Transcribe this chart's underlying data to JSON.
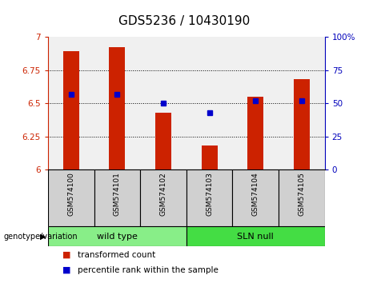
{
  "title": "GDS5236 / 10430190",
  "samples": [
    "GSM574100",
    "GSM574101",
    "GSM574102",
    "GSM574103",
    "GSM574104",
    "GSM574105"
  ],
  "transformed_count": [
    6.89,
    6.92,
    6.43,
    6.18,
    6.55,
    6.68
  ],
  "percentile_rank": [
    57,
    57,
    50,
    43,
    52,
    52
  ],
  "ylim_left": [
    6.0,
    7.0
  ],
  "yticks_left": [
    6.0,
    6.25,
    6.5,
    6.75,
    7.0
  ],
  "ytick_labels_left": [
    "6",
    "6.25",
    "6.5",
    "6.75",
    "7"
  ],
  "ylim_right": [
    0,
    100
  ],
  "yticks_right": [
    0,
    25,
    50,
    75,
    100
  ],
  "ytick_labels_right": [
    "0",
    "25",
    "50",
    "75",
    "100%"
  ],
  "bar_color": "#cc2200",
  "dot_color": "#0000cc",
  "groups": [
    {
      "label": "wild type",
      "indices": [
        0,
        1,
        2
      ],
      "color": "#88ee88"
    },
    {
      "label": "SLN null",
      "indices": [
        3,
        4,
        5
      ],
      "color": "#44dd44"
    }
  ],
  "group_row_label": "genotype/variation",
  "legend_items": [
    {
      "color": "#cc2200",
      "label": "transformed count"
    },
    {
      "color": "#0000cc",
      "label": "percentile rank within the sample"
    }
  ],
  "bar_width": 0.35,
  "axis_bg": "#f0f0f0",
  "sample_bg": "#d0d0d0",
  "title_fontsize": 11,
  "tick_fontsize": 7.5,
  "sample_fontsize": 6.5,
  "group_fontsize": 8,
  "legend_fontsize": 7.5
}
